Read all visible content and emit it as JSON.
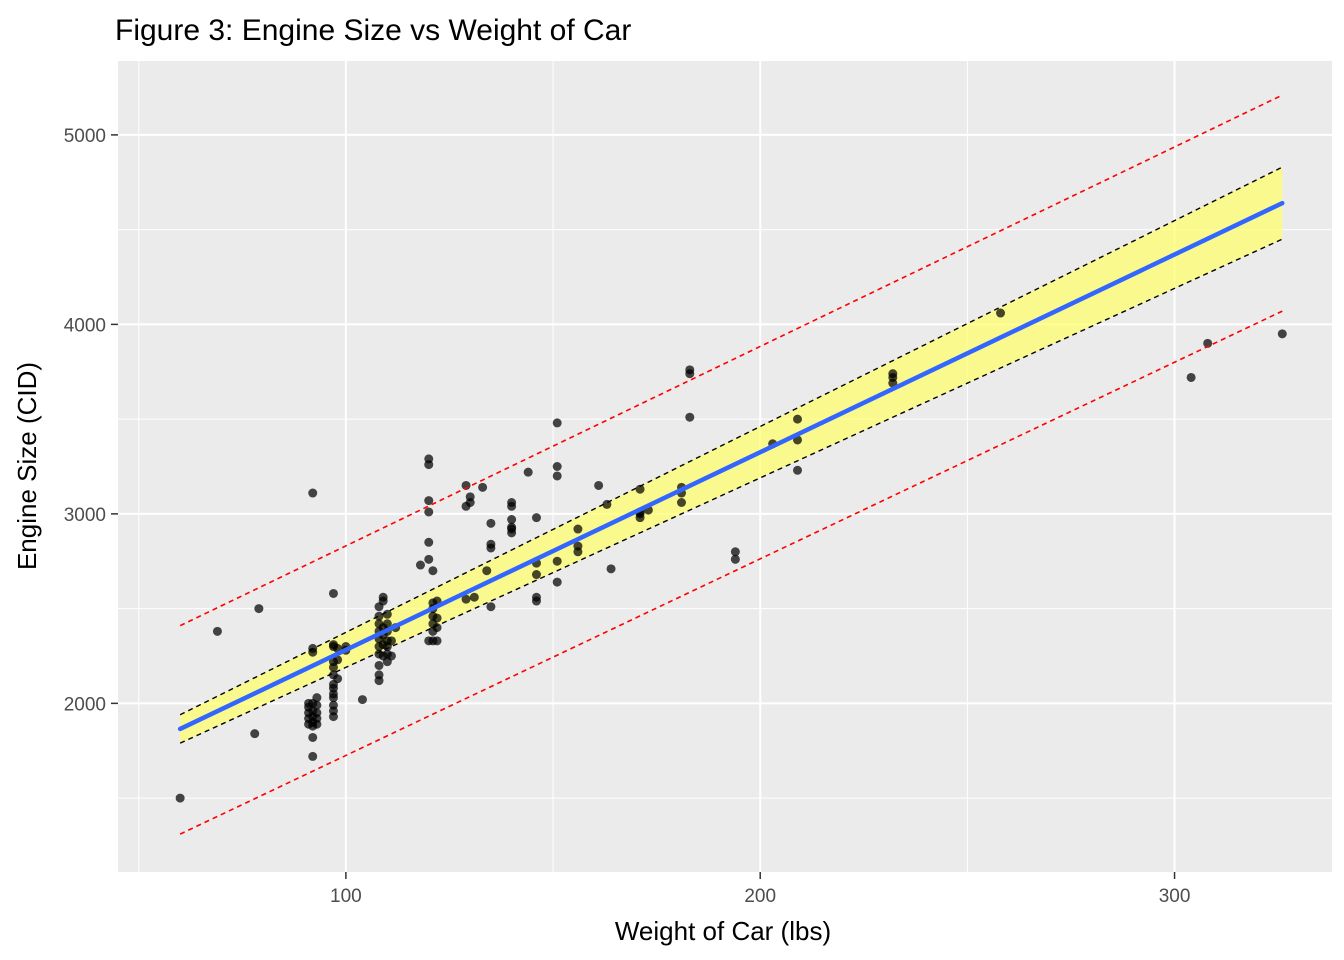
{
  "chart_data": {
    "type": "scatter",
    "title": "Figure 3: Engine Size vs Weight of Car",
    "xlabel": "Weight of Car (lbs)",
    "ylabel": "Engine Size (CID)",
    "xlim": [
      45,
      338
    ],
    "ylim": [
      1110,
      5390
    ],
    "x_ticks": [
      100,
      200,
      300
    ],
    "y_ticks": [
      2000,
      3000,
      4000,
      5000
    ],
    "grid": true,
    "legend": "none",
    "colors": {
      "panel": "#ebebeb",
      "grid": "#ffffff",
      "points": "#000000",
      "fit_line": "#3366ff",
      "confidence_fill": "#ffff66",
      "confidence_bounds": "#000000",
      "prediction_bounds": "#ff0000"
    },
    "fit": {
      "x_start": 60,
      "x_end": 326,
      "y_start": 1865,
      "y_end": 4640
    },
    "confidence_band": {
      "lower": [
        1790,
        4450
      ],
      "upper": [
        1940,
        4830
      ]
    },
    "prediction_band": {
      "lower": [
        1310,
        4070
      ],
      "upper": [
        2410,
        5210
      ]
    },
    "series": [
      {
        "points": [
          [
            60,
            1500
          ],
          [
            69,
            2380
          ],
          [
            78,
            1840
          ],
          [
            79,
            2500
          ],
          [
            91,
            1890
          ],
          [
            91,
            1920
          ],
          [
            91,
            1950
          ],
          [
            91,
            1980
          ],
          [
            91,
            2000
          ],
          [
            92,
            1880
          ],
          [
            92,
            1900
          ],
          [
            92,
            1930
          ],
          [
            92,
            1960
          ],
          [
            92,
            2000
          ],
          [
            92,
            2290
          ],
          [
            92,
            2270
          ],
          [
            92,
            3110
          ],
          [
            92,
            1820
          ],
          [
            92,
            1720
          ],
          [
            93,
            1890
          ],
          [
            93,
            1920
          ],
          [
            93,
            1950
          ],
          [
            93,
            1990
          ],
          [
            93,
            2030
          ],
          [
            97,
            1930
          ],
          [
            97,
            1960
          ],
          [
            97,
            1990
          ],
          [
            97,
            2030
          ],
          [
            97,
            2050
          ],
          [
            97,
            2080
          ],
          [
            97,
            2100
          ],
          [
            97,
            2150
          ],
          [
            97,
            2190
          ],
          [
            97,
            2220
          ],
          [
            97,
            2300
          ],
          [
            97,
            2310
          ],
          [
            97,
            2580
          ],
          [
            98,
            2130
          ],
          [
            98,
            2230
          ],
          [
            98,
            2290
          ],
          [
            100,
            2280
          ],
          [
            100,
            2300
          ],
          [
            104,
            2020
          ],
          [
            108,
            2120
          ],
          [
            108,
            2150
          ],
          [
            108,
            2200
          ],
          [
            108,
            2260
          ],
          [
            108,
            2300
          ],
          [
            108,
            2340
          ],
          [
            108,
            2380
          ],
          [
            108,
            2420
          ],
          [
            108,
            2460
          ],
          [
            108,
            2510
          ],
          [
            109,
            2250
          ],
          [
            109,
            2310
          ],
          [
            109,
            2360
          ],
          [
            109,
            2400
          ],
          [
            109,
            2540
          ],
          [
            109,
            2560
          ],
          [
            110,
            2220
          ],
          [
            110,
            2260
          ],
          [
            110,
            2300
          ],
          [
            110,
            2330
          ],
          [
            110,
            2380
          ],
          [
            110,
            2420
          ],
          [
            110,
            2470
          ],
          [
            111,
            2250
          ],
          [
            111,
            2330
          ],
          [
            112,
            2400
          ],
          [
            118,
            2730
          ],
          [
            120,
            2330
          ],
          [
            120,
            2760
          ],
          [
            120,
            2850
          ],
          [
            120,
            3010
          ],
          [
            120,
            3070
          ],
          [
            120,
            3260
          ],
          [
            120,
            3290
          ],
          [
            121,
            2330
          ],
          [
            121,
            2380
          ],
          [
            121,
            2420
          ],
          [
            121,
            2460
          ],
          [
            121,
            2500
          ],
          [
            121,
            2530
          ],
          [
            121,
            2700
          ],
          [
            122,
            2330
          ],
          [
            122,
            2400
          ],
          [
            122,
            2450
          ],
          [
            122,
            2540
          ],
          [
            129,
            2550
          ],
          [
            129,
            3040
          ],
          [
            129,
            3150
          ],
          [
            130,
            3060
          ],
          [
            130,
            3090
          ],
          [
            131,
            2560
          ],
          [
            133,
            3140
          ],
          [
            134,
            2700
          ],
          [
            135,
            2510
          ],
          [
            135,
            2820
          ],
          [
            135,
            2840
          ],
          [
            135,
            2950
          ],
          [
            140,
            2900
          ],
          [
            140,
            2920
          ],
          [
            140,
            2930
          ],
          [
            140,
            2970
          ],
          [
            140,
            3040
          ],
          [
            140,
            3060
          ],
          [
            144,
            3220
          ],
          [
            146,
            2540
          ],
          [
            146,
            2560
          ],
          [
            146,
            2680
          ],
          [
            146,
            2740
          ],
          [
            146,
            2980
          ],
          [
            151,
            2640
          ],
          [
            151,
            2750
          ],
          [
            151,
            3200
          ],
          [
            151,
            3250
          ],
          [
            151,
            3480
          ],
          [
            156,
            2800
          ],
          [
            156,
            2830
          ],
          [
            156,
            2920
          ],
          [
            161,
            3150
          ],
          [
            163,
            3050
          ],
          [
            164,
            2710
          ],
          [
            171,
            2980
          ],
          [
            171,
            3000
          ],
          [
            171,
            3010
          ],
          [
            171,
            3130
          ],
          [
            173,
            3020
          ],
          [
            181,
            3060
          ],
          [
            181,
            3110
          ],
          [
            181,
            3140
          ],
          [
            183,
            3740
          ],
          [
            183,
            3760
          ],
          [
            183,
            3510
          ],
          [
            194,
            2760
          ],
          [
            194,
            2800
          ],
          [
            203,
            3370
          ],
          [
            209,
            3230
          ],
          [
            209,
            3390
          ],
          [
            209,
            3500
          ],
          [
            232,
            3690
          ],
          [
            232,
            3720
          ],
          [
            232,
            3740
          ],
          [
            258,
            4060
          ],
          [
            304,
            3720
          ],
          [
            308,
            3900
          ],
          [
            326,
            3950
          ]
        ]
      }
    ]
  }
}
